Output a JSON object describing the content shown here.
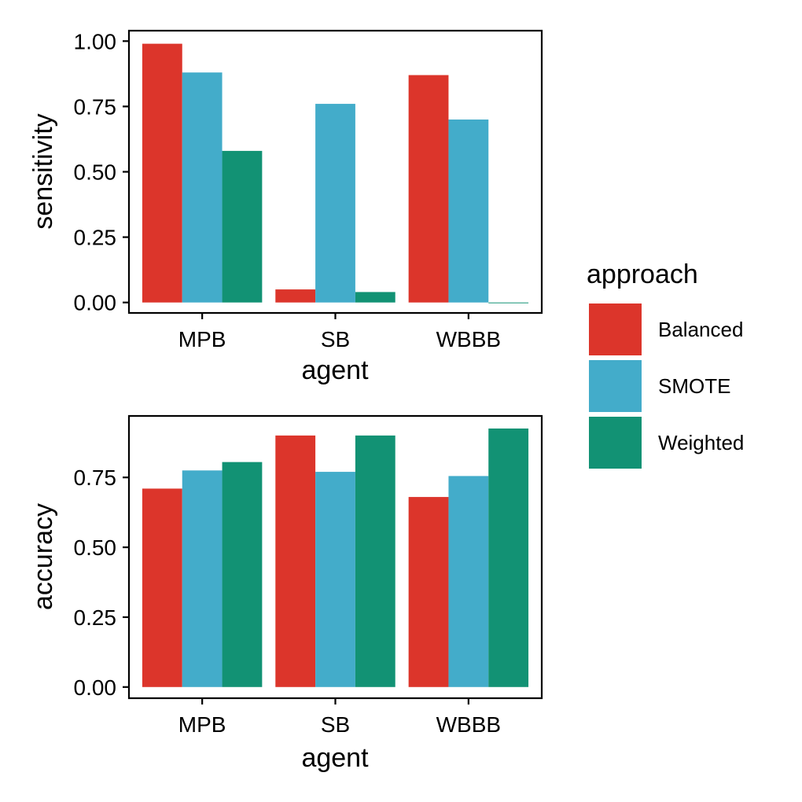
{
  "chart_data": [
    {
      "type": "bar",
      "categories": [
        "MPB",
        "SB",
        "WBBB"
      ],
      "series": [
        {
          "name": "Balanced",
          "values": [
            0.99,
            0.05,
            0.87
          ]
        },
        {
          "name": "SMOTE",
          "values": [
            0.88,
            0.76,
            0.7
          ]
        },
        {
          "name": "Weighted",
          "values": [
            0.58,
            0.04,
            0.0
          ]
        }
      ],
      "xlabel": "agent",
      "ylabel": "sensitivity",
      "ylim": [
        -0.04,
        1.04
      ],
      "yticks": [
        0.0,
        0.25,
        0.5,
        0.75,
        1.0
      ],
      "ytick_labels": [
        "0.00",
        "0.25",
        "0.50",
        "0.75",
        "1.00"
      ],
      "grid": false
    },
    {
      "type": "bar",
      "categories": [
        "MPB",
        "SB",
        "WBBB"
      ],
      "series": [
        {
          "name": "Balanced",
          "values": [
            0.71,
            0.9,
            0.68
          ]
        },
        {
          "name": "SMOTE",
          "values": [
            0.775,
            0.77,
            0.755
          ]
        },
        {
          "name": "Weighted",
          "values": [
            0.805,
            0.9,
            0.925
          ]
        }
      ],
      "xlabel": "agent",
      "ylabel": "accuracy",
      "ylim": [
        -0.04,
        0.97
      ],
      "yticks": [
        0.0,
        0.25,
        0.5,
        0.75
      ],
      "ytick_labels": [
        "0.00",
        "0.25",
        "0.50",
        "0.75"
      ],
      "grid": false
    }
  ],
  "legend": {
    "title": "approach",
    "placement": "right",
    "items": [
      {
        "label": "Balanced",
        "color": "#dc352b"
      },
      {
        "label": "SMOTE",
        "color": "#43acca"
      },
      {
        "label": "Weighted",
        "color": "#129274"
      }
    ]
  }
}
